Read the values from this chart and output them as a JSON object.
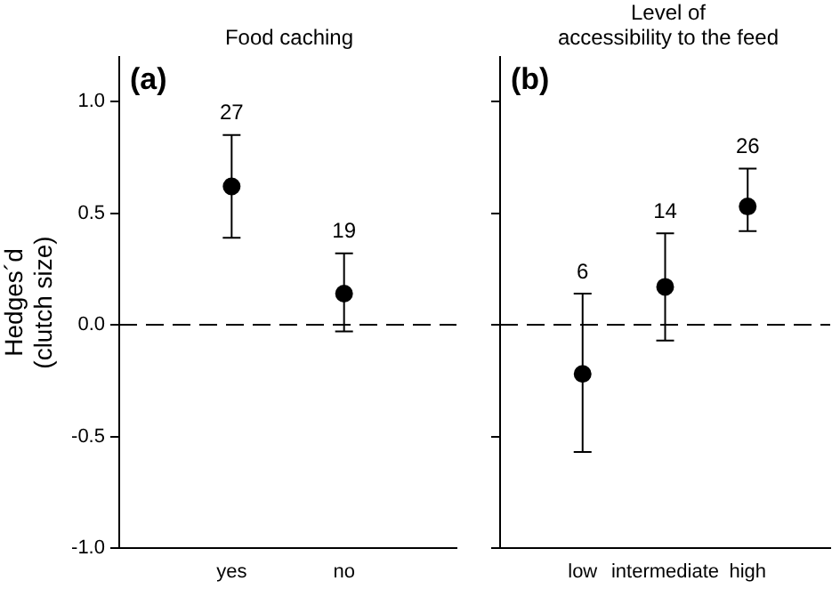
{
  "chart_data": [
    {
      "type": "scatter",
      "title": "Food caching",
      "ylabel": "Hedges´d\n(clutch size)",
      "categories": [
        "yes",
        "no"
      ],
      "series": [
        {
          "color": "#000000",
          "values": [
            0.62,
            0.14
          ],
          "errors": [
            [
              0.39,
              0.85
            ],
            [
              -0.03,
              0.32
            ]
          ]
        }
      ],
      "ylim": [
        -1,
        1.2
      ],
      "yticks": [
        {
          "value": -1,
          "label": "-1.0"
        },
        {
          "value": -0.5,
          "label": "-0.5"
        },
        {
          "value": 0,
          "label": "0.0"
        },
        {
          "value": 0.5,
          "label": "0.5"
        },
        {
          "value": 1,
          "label": "1.0"
        }
      ],
      "ref_lines": [
        {
          "axis": "y",
          "value": 0,
          "line_style": "dashed"
        }
      ],
      "annotations": [
        "(a)",
        {
          "text": "27",
          "x": "yes",
          "y": 0.85
        },
        {
          "text": "19",
          "x": "no",
          "y": 0.32
        }
      ],
      "grid": false,
      "legend": false,
      "marker": "circle"
    },
    {
      "type": "scatter",
      "title": "Level of\naccessibility to the feed",
      "categories": [
        "low",
        "intermediate",
        "high"
      ],
      "series": [
        {
          "color": "#000000",
          "values": [
            -0.22,
            0.17,
            0.53
          ],
          "errors": [
            [
              -0.57,
              0.14
            ],
            [
              -0.07,
              0.41
            ],
            [
              0.42,
              0.7
            ]
          ]
        }
      ],
      "ylim": [
        -1,
        1.2
      ],
      "yticks": [
        {
          "value": -1,
          "label": null
        },
        {
          "value": -0.5,
          "label": null
        },
        {
          "value": 0,
          "label": null
        },
        {
          "value": 0.5,
          "label": null
        },
        {
          "value": 1,
          "label": null
        }
      ],
      "ref_lines": [
        {
          "axis": "y",
          "value": 0,
          "line_style": "dashed"
        }
      ],
      "annotations": [
        "(b)",
        {
          "text": "6",
          "x": "low",
          "y": 0.14
        },
        {
          "text": "14",
          "x": "intermediate",
          "y": 0.41
        },
        {
          "text": "26",
          "x": "high",
          "y": 0.7
        }
      ],
      "grid": false,
      "legend": false,
      "marker": "circle",
      "tick_labels": "x"
    }
  ]
}
